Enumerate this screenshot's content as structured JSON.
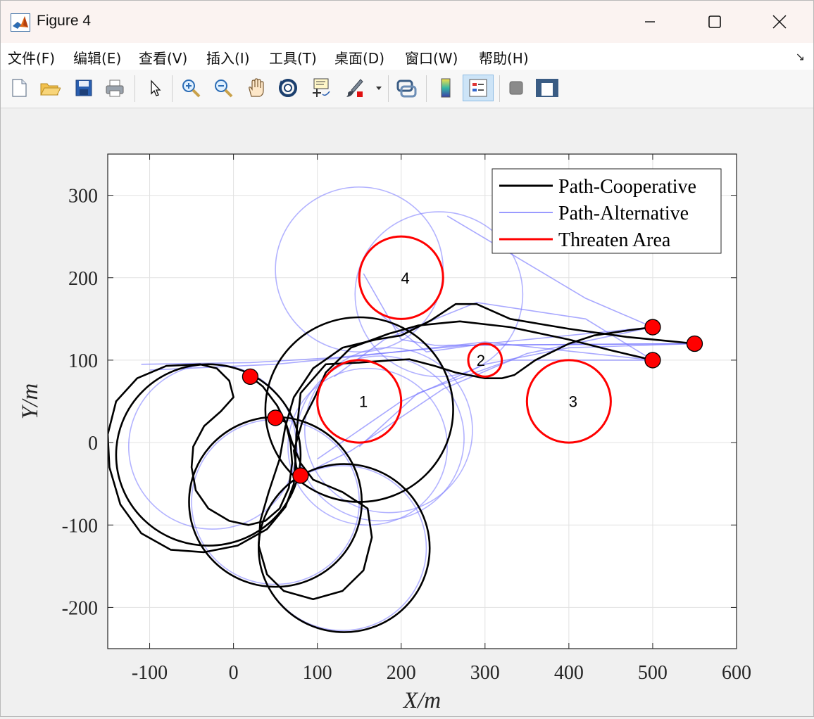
{
  "window": {
    "title": "Figure 4"
  },
  "menu": [
    "文件(F)",
    "编辑(E)",
    "查看(V)",
    "插入(I)",
    "工具(T)",
    "桌面(D)",
    "窗口(W)",
    "帮助(H)"
  ],
  "menu_corner_glyph": "↘",
  "toolbar": {
    "items": [
      "new-figure-icon",
      "open-icon",
      "save-icon",
      "print-icon",
      "pointer-icon",
      "zoom-in-icon",
      "zoom-out-icon",
      "pan-icon",
      "rotate-3d-icon",
      "data-cursor-icon",
      "brush-icon",
      "brush-dropdown-icon",
      "link-plot-icon",
      "colorbar-icon",
      "legend-icon",
      "hide-plot-tools-icon",
      "show-plot-tools-icon"
    ]
  },
  "chart_data": {
    "type": "line",
    "xlabel": "X/m",
    "ylabel": "Y/m",
    "xlim": [
      -150,
      600
    ],
    "ylim": [
      -250,
      350
    ],
    "x_ticks": [
      -100,
      0,
      100,
      200,
      300,
      400,
      500,
      600
    ],
    "y_ticks": [
      -200,
      -100,
      0,
      100,
      200,
      300
    ],
    "x_tick_labels": [
      "-100",
      "0",
      "100",
      "200",
      "300",
      "400",
      "500",
      "600"
    ],
    "y_tick_labels": [
      "-200",
      "-100",
      "0",
      "100",
      "200",
      "300"
    ],
    "grid": true,
    "legend_position": "top-right",
    "legend": [
      {
        "name": "Path-Cooperative",
        "color": "#000000"
      },
      {
        "name": "Path-Alternative",
        "color": "#9a9aff"
      },
      {
        "name": "Threaten Area",
        "color": "#ff0000"
      }
    ],
    "threat_areas": [
      {
        "label": "1",
        "x": 150,
        "y": 50,
        "r": 50
      },
      {
        "label": "2",
        "x": 300,
        "y": 100,
        "r": 20
      },
      {
        "label": "3",
        "x": 400,
        "y": 50,
        "r": 50
      },
      {
        "label": "4",
        "x": 200,
        "y": 200,
        "r": 50
      }
    ],
    "start_points": [
      {
        "x": 20,
        "y": 80
      },
      {
        "x": 50,
        "y": 30
      },
      {
        "x": 80,
        "y": -40
      }
    ],
    "end_points": [
      {
        "x": 500,
        "y": 140
      },
      {
        "x": 500,
        "y": 100
      },
      {
        "x": 550,
        "y": 120
      }
    ],
    "cooperative_paths": [
      [
        [
          20,
          80
        ],
        [
          35,
          68
        ],
        [
          52,
          45
        ],
        [
          62,
          25
        ],
        [
          68,
          0
        ],
        [
          70,
          -25
        ],
        [
          66,
          -55
        ],
        [
          55,
          -80
        ],
        [
          38,
          -95
        ],
        [
          18,
          -100
        ],
        [
          -5,
          -95
        ],
        [
          -30,
          -80
        ],
        [
          -45,
          -58
        ],
        [
          -50,
          -30
        ],
        [
          -48,
          -5
        ],
        [
          -35,
          20
        ],
        [
          -15,
          38
        ],
        [
          0,
          55
        ],
        [
          -5,
          75
        ],
        [
          -20,
          90
        ],
        [
          -40,
          95
        ],
        [
          -80,
          93
        ],
        [
          -115,
          78
        ],
        [
          -140,
          50
        ],
        [
          -150,
          10
        ],
        [
          -148,
          -30
        ],
        [
          -135,
          -75
        ],
        [
          -110,
          -110
        ],
        [
          -75,
          -130
        ],
        [
          -35,
          -133
        ],
        [
          5,
          -125
        ],
        [
          40,
          -105
        ],
        [
          62,
          -78
        ],
        [
          72,
          -50
        ],
        [
          74,
          -20
        ],
        [
          75,
          10
        ],
        [
          80,
          60
        ],
        [
          110,
          95
        ],
        [
          150,
          97
        ],
        [
          190,
          100
        ],
        [
          210,
          101
        ],
        [
          240,
          93
        ],
        [
          265,
          85
        ],
        [
          300,
          78
        ],
        [
          320,
          78
        ],
        [
          335,
          82
        ],
        [
          360,
          100
        ],
        [
          400,
          120
        ],
        [
          430,
          130
        ],
        [
          470,
          136
        ],
        [
          500,
          140
        ]
      ],
      [
        [
          50,
          30
        ],
        [
          62,
          25
        ],
        [
          70,
          0
        ],
        [
          80,
          -25
        ],
        [
          95,
          -45
        ],
        [
          130,
          -60
        ],
        [
          160,
          -80
        ],
        [
          165,
          -115
        ],
        [
          155,
          -155
        ],
        [
          130,
          -180
        ],
        [
          95,
          -190
        ],
        [
          60,
          -180
        ],
        [
          40,
          -160
        ],
        [
          30,
          -125
        ],
        [
          32,
          -95
        ],
        [
          42,
          -60
        ],
        [
          55,
          -20
        ],
        [
          62,
          20
        ],
        [
          72,
          55
        ],
        [
          95,
          90
        ],
        [
          130,
          115
        ],
        [
          170,
          125
        ],
        [
          200,
          130
        ],
        [
          235,
          148
        ],
        [
          265,
          168
        ],
        [
          290,
          168
        ],
        [
          330,
          150
        ],
        [
          400,
          138
        ],
        [
          470,
          128
        ],
        [
          530,
          122
        ],
        [
          550,
          120
        ]
      ],
      [
        [
          80,
          -40
        ],
        [
          75,
          -30
        ],
        [
          72,
          -10
        ],
        [
          82,
          25
        ],
        [
          97,
          55
        ],
        [
          110,
          85
        ],
        [
          140,
          115
        ],
        [
          185,
          132
        ],
        [
          220,
          142
        ],
        [
          270,
          147
        ],
        [
          330,
          140
        ],
        [
          400,
          125
        ],
        [
          450,
          112
        ],
        [
          500,
          100
        ]
      ]
    ],
    "cooperative_circles": [
      {
        "x": -30,
        "y": -15,
        "r": 110
      },
      {
        "x": 50,
        "y": -72,
        "r": 103
      },
      {
        "x": 132,
        "y": -128,
        "r": 102
      },
      {
        "x": 150,
        "y": 40,
        "r": 112
      }
    ],
    "alternative_circles": [
      {
        "x": -25,
        "y": -5,
        "r": 100
      },
      {
        "x": 50,
        "y": -72,
        "r": 100
      },
      {
        "x": 130,
        "y": -128,
        "r": 100
      },
      {
        "x": 160,
        "y": -5,
        "r": 95
      },
      {
        "x": 175,
        "y": 5,
        "r": 100
      },
      {
        "x": 185,
        "y": 15,
        "r": 100
      },
      {
        "x": 150,
        "y": 210,
        "r": 100
      },
      {
        "x": 245,
        "y": 180,
        "r": 100
      }
    ],
    "alternative_lines": [
      [
        [
          -110,
          95
        ],
        [
          20,
          97
        ],
        [
          120,
          103
        ],
        [
          280,
          118
        ],
        [
          550,
          120
        ]
      ],
      [
        [
          -100,
          88
        ],
        [
          50,
          95
        ],
        [
          150,
          105
        ],
        [
          300,
          122
        ],
        [
          500,
          100
        ]
      ],
      [
        [
          80,
          -40
        ],
        [
          140,
          -10
        ],
        [
          250,
          65
        ],
        [
          350,
          108
        ],
        [
          500,
          140
        ]
      ],
      [
        [
          100,
          -20
        ],
        [
          200,
          50
        ],
        [
          300,
          95
        ],
        [
          400,
          115
        ],
        [
          550,
          120
        ]
      ],
      [
        [
          150,
          -5
        ],
        [
          220,
          60
        ],
        [
          330,
          100
        ],
        [
          500,
          100
        ]
      ],
      [
        [
          255,
          275
        ],
        [
          420,
          175
        ],
        [
          500,
          140
        ]
      ],
      [
        [
          155,
          205
        ],
        [
          200,
          125
        ],
        [
          240,
          118
        ],
        [
          550,
          120
        ]
      ],
      [
        [
          170,
          160
        ],
        [
          230,
          110
        ],
        [
          300,
          120
        ],
        [
          500,
          140
        ]
      ],
      [
        [
          120,
          80
        ],
        [
          180,
          125
        ],
        [
          290,
          170
        ],
        [
          420,
          150
        ],
        [
          500,
          100
        ]
      ]
    ]
  }
}
